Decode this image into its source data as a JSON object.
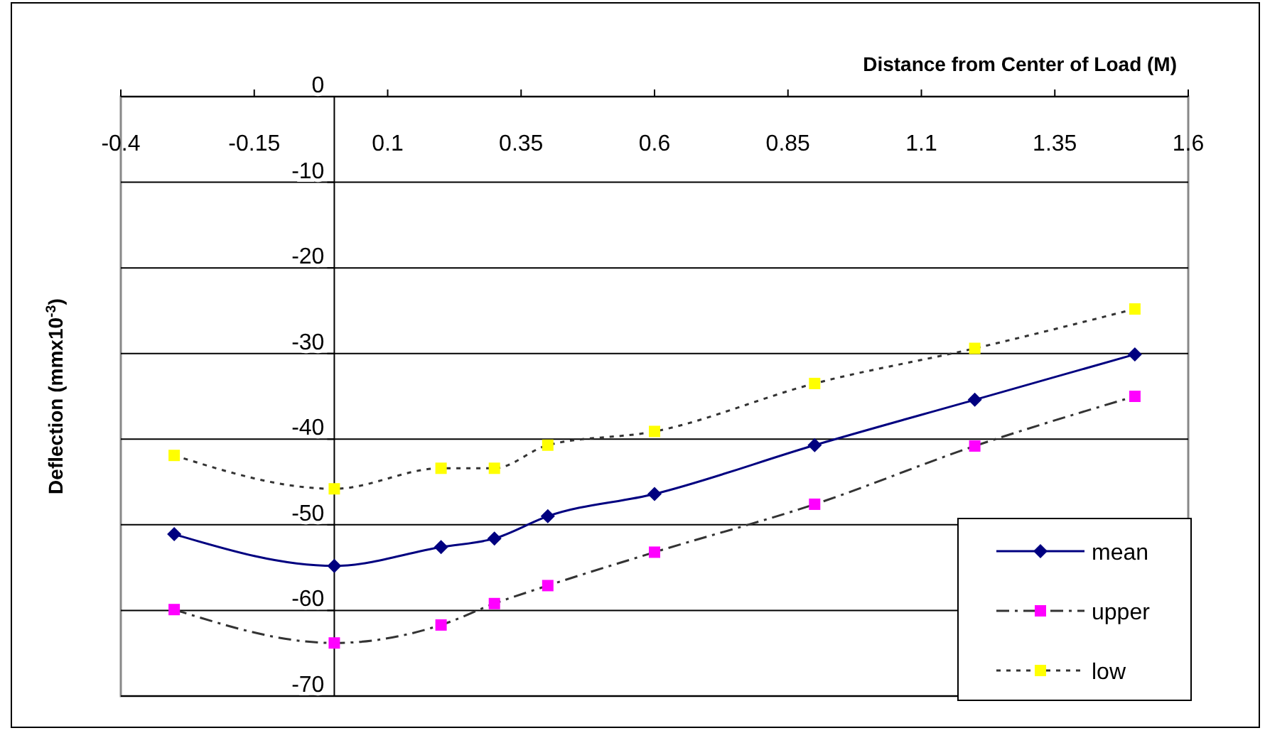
{
  "chart_data": {
    "type": "line",
    "xlabel": "Distance from Center of Load (M)",
    "ylabel": "Deflection (mmx10$^{-3}$)",
    "x": [
      -0.3,
      0,
      0.2,
      0.3,
      0.4,
      0.6,
      0.9,
      1.2,
      1.5
    ],
    "xlim": [
      -0.4,
      1.6
    ],
    "xticks": [
      -0.4,
      -0.15,
      0.1,
      0.35,
      0.6,
      0.85,
      1.1,
      1.35,
      1.6
    ],
    "ylim": [
      -70,
      0
    ],
    "yticks": [
      0,
      -10,
      -20,
      -30,
      -40,
      -50,
      -60,
      -70
    ],
    "grid": "y",
    "legend": "bottom right",
    "series": [
      {
        "name": "mean",
        "color": "#000080",
        "marker": "diamond",
        "line_style": "solid",
        "values": [
          -51.1,
          -54.8,
          -52.6,
          -51.6,
          -49.0,
          -46.4,
          -40.7,
          -35.4,
          -30.1
        ]
      },
      {
        "name": "upper",
        "color": "#ff00ff",
        "marker": "square",
        "line_style": "dashed",
        "values": [
          -59.9,
          -63.8,
          -61.7,
          -59.2,
          -57.1,
          -53.2,
          -47.6,
          -40.8,
          -35.0
        ]
      },
      {
        "name": "low",
        "color": "#ffff00",
        "marker": "square",
        "line_style": "dotted",
        "values": [
          -41.9,
          -45.8,
          -43.4,
          -43.4,
          -40.7,
          -39.1,
          -33.5,
          -29.4,
          -24.8
        ]
      }
    ]
  }
}
